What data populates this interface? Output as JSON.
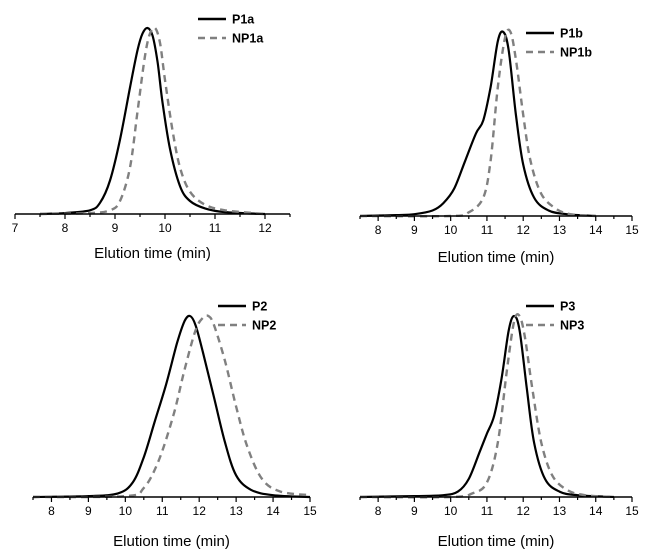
{
  "chart_data": [
    {
      "type": "line",
      "xlabel": "Elution time (min)",
      "ylabel": "",
      "xlim": [
        7,
        12.5
      ],
      "ylim": [
        0,
        1
      ],
      "xticks": [
        7,
        8,
        9,
        10,
        11,
        12
      ],
      "grid": false,
      "legend_position": "top-right",
      "series": [
        {
          "name": "P1a",
          "style": "solid",
          "color": "#000000",
          "x": [
            7.5,
            8.0,
            8.5,
            8.7,
            8.9,
            9.1,
            9.3,
            9.45,
            9.55,
            9.65,
            9.75,
            9.85,
            9.95,
            10.1,
            10.3,
            10.5,
            10.8,
            11.2,
            12.0
          ],
          "values": [
            0.0,
            0.005,
            0.02,
            0.06,
            0.18,
            0.4,
            0.68,
            0.88,
            0.97,
            1.0,
            0.96,
            0.82,
            0.6,
            0.35,
            0.15,
            0.07,
            0.03,
            0.01,
            0.0
          ]
        },
        {
          "name": "NP1a",
          "style": "dashed",
          "color": "#808080",
          "x": [
            7.5,
            8.5,
            8.9,
            9.1,
            9.3,
            9.45,
            9.6,
            9.7,
            9.8,
            9.9,
            10.0,
            10.15,
            10.3,
            10.5,
            10.8,
            11.2,
            12.0
          ],
          "values": [
            0.0,
            0.005,
            0.02,
            0.07,
            0.25,
            0.55,
            0.85,
            0.97,
            1.0,
            0.92,
            0.72,
            0.45,
            0.25,
            0.12,
            0.05,
            0.02,
            0.0
          ]
        }
      ]
    },
    {
      "type": "line",
      "xlabel": "Elution time (min)",
      "ylabel": "",
      "xlim": [
        7.5,
        15
      ],
      "ylim": [
        0,
        1
      ],
      "xticks": [
        8,
        9,
        10,
        11,
        12,
        13,
        14,
        15
      ],
      "grid": false,
      "legend_position": "top-right",
      "series": [
        {
          "name": "P1b",
          "style": "solid",
          "color": "#000000",
          "x": [
            7.5,
            8.5,
            9.0,
            9.5,
            9.8,
            10.1,
            10.4,
            10.7,
            10.9,
            11.1,
            11.3,
            11.45,
            11.6,
            11.8,
            12.0,
            12.3,
            12.7,
            13.2,
            14.0
          ],
          "values": [
            0.0,
            0.005,
            0.01,
            0.03,
            0.07,
            0.15,
            0.3,
            0.45,
            0.52,
            0.7,
            0.95,
            1.0,
            0.9,
            0.55,
            0.28,
            0.1,
            0.03,
            0.01,
            0.0
          ]
        },
        {
          "name": "NP1b",
          "style": "dashed",
          "color": "#808080",
          "x": [
            7.5,
            10.0,
            10.5,
            10.9,
            11.1,
            11.3,
            11.5,
            11.65,
            11.8,
            12.0,
            12.2,
            12.5,
            12.9,
            13.3,
            14.0
          ],
          "values": [
            0.0,
            0.0,
            0.02,
            0.1,
            0.3,
            0.7,
            0.97,
            1.0,
            0.85,
            0.55,
            0.3,
            0.12,
            0.04,
            0.01,
            0.0
          ]
        }
      ]
    },
    {
      "type": "line",
      "xlabel": "Elution time (min)",
      "ylabel": "",
      "xlim": [
        7.5,
        15
      ],
      "ylim": [
        0,
        1
      ],
      "xticks": [
        8,
        9,
        10,
        11,
        12,
        13,
        14,
        15
      ],
      "grid": false,
      "legend_position": "top-right",
      "series": [
        {
          "name": "P2",
          "style": "solid",
          "color": "#000000",
          "x": [
            7.5,
            9.0,
            9.8,
            10.2,
            10.5,
            10.8,
            11.1,
            11.4,
            11.6,
            11.75,
            11.9,
            12.1,
            12.4,
            12.7,
            13.0,
            13.4,
            14.0,
            15.0
          ],
          "values": [
            0.0,
            0.005,
            0.02,
            0.08,
            0.22,
            0.42,
            0.62,
            0.85,
            0.97,
            1.0,
            0.95,
            0.8,
            0.55,
            0.3,
            0.12,
            0.04,
            0.01,
            0.0
          ]
        },
        {
          "name": "NP2",
          "style": "dashed",
          "color": "#808080",
          "x": [
            7.5,
            10.0,
            10.5,
            10.9,
            11.3,
            11.6,
            11.9,
            12.1,
            12.25,
            12.4,
            12.7,
            13.0,
            13.3,
            13.7,
            14.2,
            15.0
          ],
          "values": [
            0.0,
            0.005,
            0.05,
            0.2,
            0.45,
            0.7,
            0.92,
            0.99,
            1.0,
            0.95,
            0.75,
            0.5,
            0.28,
            0.1,
            0.03,
            0.01
          ]
        }
      ]
    },
    {
      "type": "line",
      "xlabel": "Elution time (min)",
      "ylabel": "",
      "xlim": [
        7.5,
        15
      ],
      "ylim": [
        0,
        1
      ],
      "xticks": [
        8,
        9,
        10,
        11,
        12,
        13,
        14,
        15
      ],
      "grid": false,
      "legend_position": "top-right",
      "series": [
        {
          "name": "P3",
          "style": "solid",
          "color": "#000000",
          "x": [
            7.5,
            9.0,
            9.8,
            10.2,
            10.5,
            10.8,
            11.0,
            11.2,
            11.4,
            11.6,
            11.75,
            11.9,
            12.1,
            12.3,
            12.6,
            13.0,
            13.5,
            14.5
          ],
          "values": [
            0.0,
            0.005,
            0.01,
            0.03,
            0.1,
            0.25,
            0.35,
            0.45,
            0.65,
            0.92,
            1.0,
            0.92,
            0.6,
            0.3,
            0.1,
            0.03,
            0.01,
            0.0
          ]
        },
        {
          "name": "NP3",
          "style": "dashed",
          "color": "#808080",
          "x": [
            7.5,
            10.0,
            10.6,
            11.0,
            11.3,
            11.55,
            11.75,
            11.9,
            12.05,
            12.25,
            12.5,
            12.8,
            13.2,
            13.7,
            14.5
          ],
          "values": [
            0.0,
            0.0,
            0.02,
            0.08,
            0.3,
            0.7,
            0.97,
            1.0,
            0.88,
            0.6,
            0.3,
            0.12,
            0.04,
            0.01,
            0.0
          ]
        }
      ]
    }
  ]
}
